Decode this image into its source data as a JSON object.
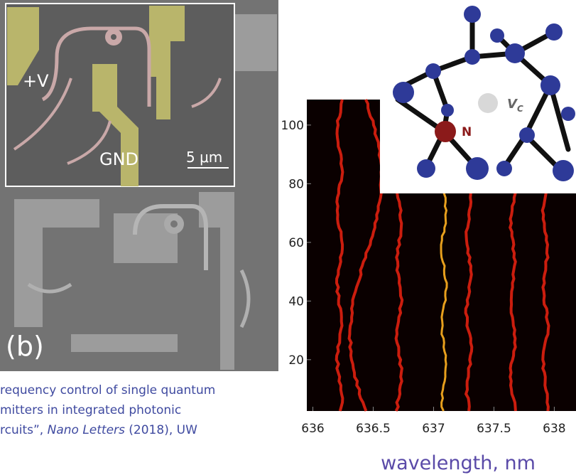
{
  "sem_image": {
    "labels": [
      "+V",
      "GND",
      "5 μm"
    ],
    "panel_label": "(b)"
  },
  "caption": {
    "line1": "requency control of single quantum",
    "line2": "mitters in integrated photonic",
    "line3_start": "rcuits”, ",
    "journal": "Nano Letters",
    "line3_end": " (2018), UW"
  },
  "spectrum": {
    "xlim": [
      635.95,
      638.18
    ],
    "ylim": [
      2.5,
      108.7
    ],
    "xticks": [
      636,
      636.5,
      637,
      637.5,
      638
    ],
    "yticks": [
      20,
      40,
      60,
      80,
      100
    ],
    "xlabel": "wavelength, nm"
  },
  "defect": {
    "vacancy_label": "V",
    "vacancy_subscript": "C",
    "nitrogen_label": "N"
  }
}
